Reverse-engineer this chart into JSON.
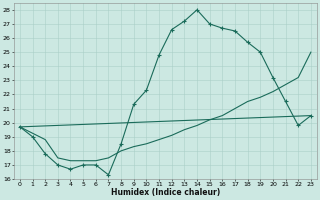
{
  "xlabel": "Humidex (Indice chaleur)",
  "bg_color": "#cce8e2",
  "line_color": "#1a6b5a",
  "grid_color": "#aacfc8",
  "xlim": [
    -0.5,
    23.5
  ],
  "ylim": [
    16,
    28.5
  ],
  "xticks": [
    0,
    1,
    2,
    3,
    4,
    5,
    6,
    7,
    8,
    9,
    10,
    11,
    12,
    13,
    14,
    15,
    16,
    17,
    18,
    19,
    20,
    21,
    22,
    23
  ],
  "yticks": [
    16,
    17,
    18,
    19,
    20,
    21,
    22,
    23,
    24,
    25,
    26,
    27,
    28
  ],
  "line1_x": [
    0,
    1,
    2,
    3,
    4,
    5,
    6,
    7,
    8,
    9,
    10,
    11,
    12,
    13,
    14,
    15,
    16,
    17,
    18,
    19,
    20,
    21,
    22,
    23
  ],
  "line1_y": [
    19.7,
    19.0,
    17.8,
    17.0,
    16.7,
    17.0,
    17.0,
    16.3,
    18.5,
    21.3,
    22.3,
    24.8,
    26.6,
    27.2,
    28.0,
    27.0,
    26.7,
    26.5,
    25.7,
    25.0,
    23.2,
    21.5,
    19.8,
    20.5
  ],
  "line2_x": [
    0,
    23
  ],
  "line2_y": [
    19.7,
    20.5
  ],
  "line3_x": [
    0,
    2,
    3,
    4,
    5,
    6,
    7,
    8,
    9,
    10,
    11,
    12,
    13,
    14,
    15,
    16,
    17,
    18,
    19,
    20,
    21,
    22,
    23
  ],
  "line3_y": [
    19.7,
    18.8,
    17.5,
    17.3,
    17.3,
    17.3,
    17.5,
    18.0,
    18.3,
    18.5,
    18.8,
    19.1,
    19.5,
    19.8,
    20.2,
    20.5,
    21.0,
    21.5,
    21.8,
    22.2,
    22.7,
    23.2,
    25.0
  ]
}
